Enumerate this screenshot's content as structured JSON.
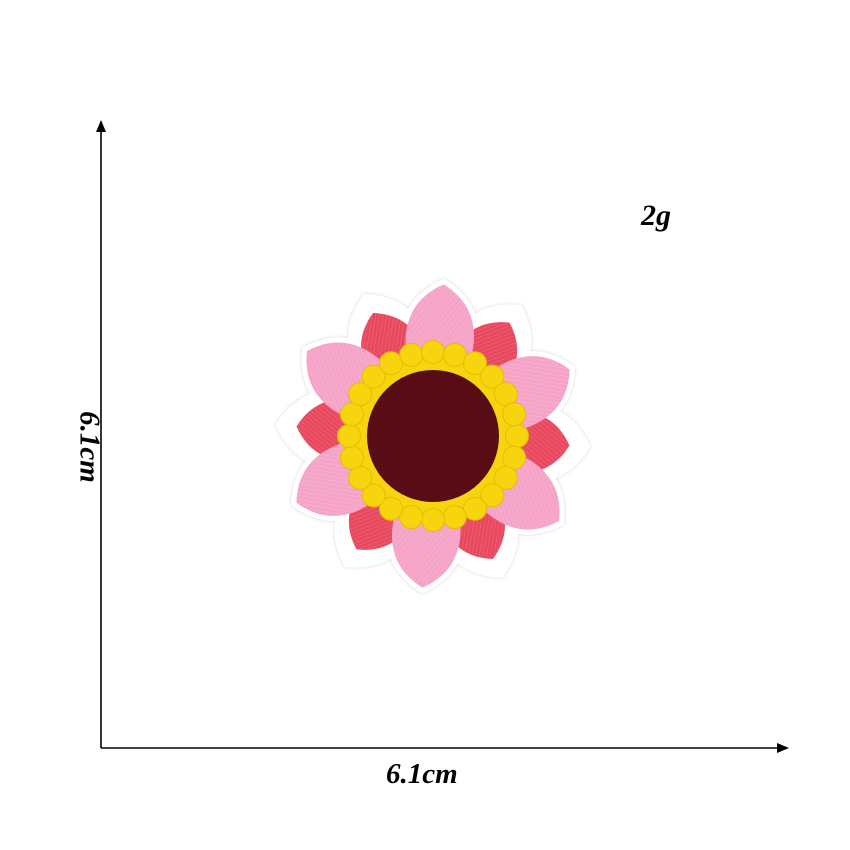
{
  "dimensions": {
    "weight": "2g",
    "width": "6.1cm",
    "height": "6.1cm"
  },
  "product": {
    "colors": {
      "light_petal": "#f5a3c7",
      "dark_petal": "#e8495f",
      "ring": "#f6d40e",
      "center": "#5c0d16",
      "border": "#ffffff"
    }
  }
}
